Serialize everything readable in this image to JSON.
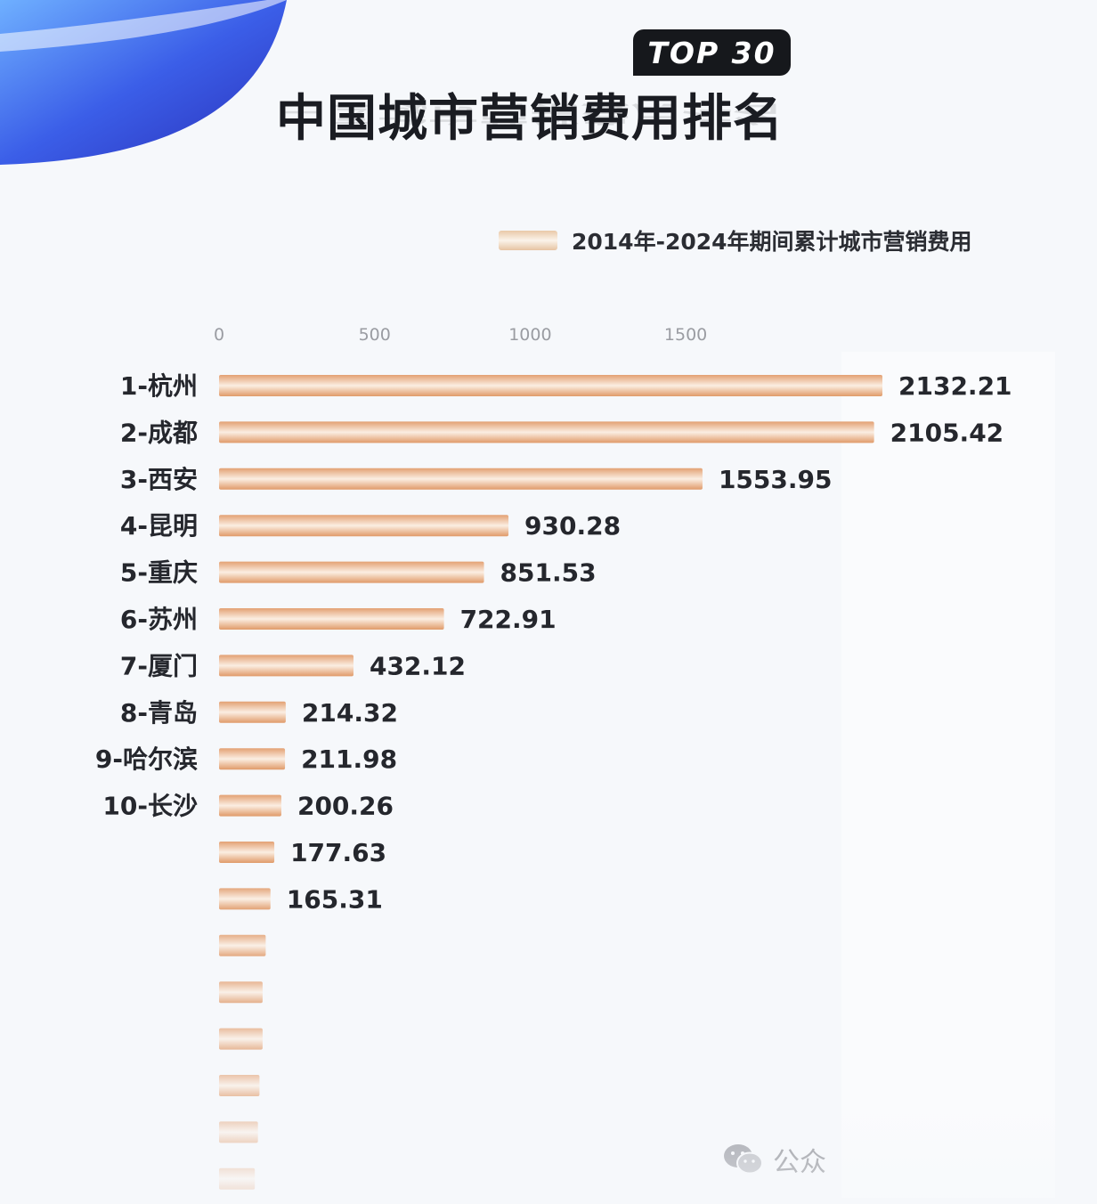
{
  "header": {
    "badge": "TOP 30",
    "title": "中国城市营销费用排名"
  },
  "legend": {
    "label": "2014年-2024年期间累计城市营销费用"
  },
  "watermark": {
    "text": "公众",
    "icon": "wechat-icon"
  },
  "colors": {
    "bar_dark": "#e3a173",
    "bar_light": "#fbeee2",
    "text": "#25272d",
    "corner_blue": "#3b5ee8"
  },
  "chart_data": {
    "type": "bar",
    "orientation": "horizontal",
    "title": "中国城市营销费用排名",
    "xlim": [
      0,
      2132.21
    ],
    "x_ticks": [
      "0",
      "500",
      "1000",
      "1500"
    ],
    "tick_values": [
      0,
      500,
      1000,
      1500
    ],
    "categories": [
      "1-杭州",
      "2-成都",
      "3-西安",
      "4-昆明",
      "5-重庆",
      "6-苏州",
      "7-厦门",
      "8-青岛",
      "9-哈尔滨",
      "10-长沙",
      "",
      "",
      "",
      "",
      "",
      "",
      "",
      ""
    ],
    "values": [
      2132.21,
      2105.42,
      1553.95,
      930.28,
      851.53,
      722.91,
      432.12,
      214.32,
      211.98,
      200.26,
      177.63,
      165.31,
      150,
      140,
      140,
      130,
      125,
      115
    ],
    "value_labels": [
      "2132.21",
      "2105.42",
      "1553.95",
      "930.28",
      "851.53",
      "722.91",
      "432.12",
      "214.32",
      "211.98",
      "200.26",
      "177.63",
      "165.31",
      "",
      "",
      "",
      "",
      "",
      ""
    ],
    "series": [
      {
        "name": "2014年-2024年期间累计城市营销费用"
      }
    ],
    "grid": false,
    "legend_position": "top-right"
  }
}
